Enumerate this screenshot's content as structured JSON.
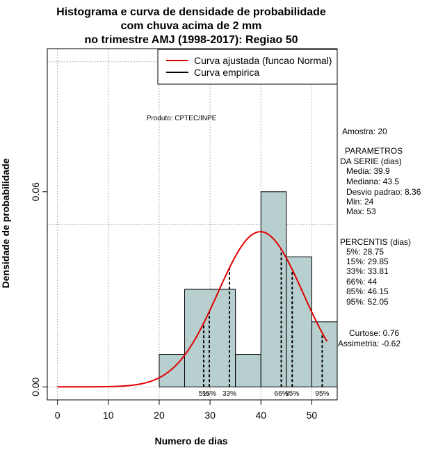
{
  "chart_data": {
    "type": "histogram",
    "title_lines": [
      "Histograma e curva de densidade de probabilidade",
      "com chuva acima de 2 mm",
      "no trimestre AMJ (1998-2017): Regiao 50"
    ],
    "xlabel": "Numero de dias",
    "ylabel": "Densidade de probabilidade",
    "xlim": [
      -2,
      55
    ],
    "ylim": [
      -0.004,
      0.104
    ],
    "x_ticks": [
      0,
      10,
      20,
      30,
      40,
      50
    ],
    "y_ticks": [
      0.0,
      0.06
    ],
    "y_tick_labels": [
      "0.00",
      "0.06"
    ],
    "grid_x": [
      0,
      10,
      20,
      30,
      40,
      50
    ],
    "grid_y": [
      0.0,
      0.05,
      0.1
    ],
    "bins": [
      {
        "start": 20,
        "end": 25,
        "density": 0.01
      },
      {
        "start": 25,
        "end": 35,
        "density": 0.03
      },
      {
        "start": 35,
        "end": 40,
        "density": 0.01
      },
      {
        "start": 40,
        "end": 45,
        "density": 0.06
      },
      {
        "start": 45,
        "end": 50,
        "density": 0.04
      },
      {
        "start": 50,
        "end": 55,
        "density": 0.02
      }
    ],
    "bar_color": "#b8cfcf",
    "normal_curve": {
      "mean": 39.9,
      "sd": 8.36,
      "x_start": 0,
      "x_end": 53,
      "color": "#e00000"
    },
    "percentiles": [
      {
        "label": "5%",
        "value": 28.75
      },
      {
        "label": "15%",
        "value": 29.85
      },
      {
        "label": "33%",
        "value": 33.81
      },
      {
        "label": "66%",
        "value": 44
      },
      {
        "label": "85%",
        "value": 46.15
      },
      {
        "label": "95%",
        "value": 52.05
      }
    ],
    "legend": [
      {
        "label": "Curva ajustada (funcao Normal)",
        "color": "#e00000"
      },
      {
        "label": "Curva empirica",
        "color": "#000000"
      }
    ],
    "legend_position": "top-right"
  },
  "annotations": {
    "product": "Produto: CPTEC/INPE",
    "sample": "Amostra: 20",
    "params_title_1": "PARAMETROS",
    "params_title_2": "DA SERIE (dias)",
    "params": [
      "Media: 39.9",
      "Mediana: 43.5",
      "Desvio padrao: 8.36",
      "Min: 24",
      "Max: 53"
    ],
    "percentis_title": "PERCENTIS (dias)",
    "percentis": [
      "5%: 28.75",
      "15%: 29.85",
      "33%: 33.81",
      "66%: 44",
      "85%: 46.15",
      "95%: 52.05"
    ],
    "curtose": "Curtose: 0.76",
    "assimetria": "Assimetria: -0.62"
  }
}
